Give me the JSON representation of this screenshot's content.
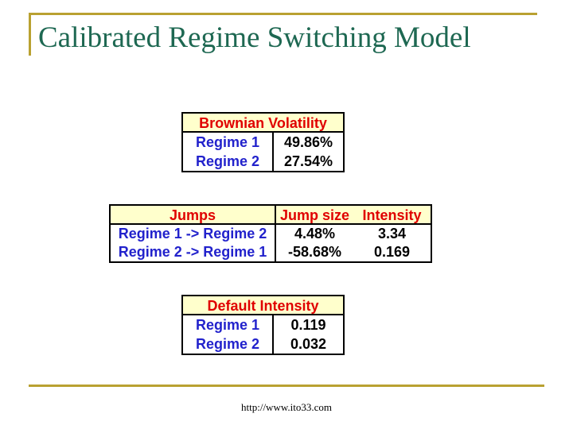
{
  "title": "Calibrated Regime Switching Model",
  "tables": {
    "brownian_volatility": {
      "header": "Brownian Volatility",
      "rows": [
        {
          "label": "Regime 1",
          "value": "49.86%"
        },
        {
          "label": "Regime 2",
          "value": "27.54%"
        }
      ]
    },
    "jumps": {
      "header": "Jumps",
      "columns": [
        "Jump size",
        "Intensity"
      ],
      "rows": [
        {
          "label": "Regime 1 -> Regime 2",
          "jump_size": "4.48%",
          "intensity": "3.34"
        },
        {
          "label": "Regime 2 -> Regime 1",
          "jump_size": "-58.68%",
          "intensity": "0.169"
        }
      ]
    },
    "default_intensity": {
      "header": "Default Intensity",
      "rows": [
        {
          "label": "Regime 1",
          "value": "0.119"
        },
        {
          "label": "Regime 2",
          "value": "0.032"
        }
      ]
    }
  },
  "footer": {
    "url": "http://www.ito33.com"
  },
  "colors": {
    "accent-gold": "#B9A131",
    "title-green": "#1E6852",
    "header-yellow": "#FFFFCC",
    "header-red": "#E00000",
    "label-blue": "#2222CC",
    "border-black": "#000000"
  }
}
